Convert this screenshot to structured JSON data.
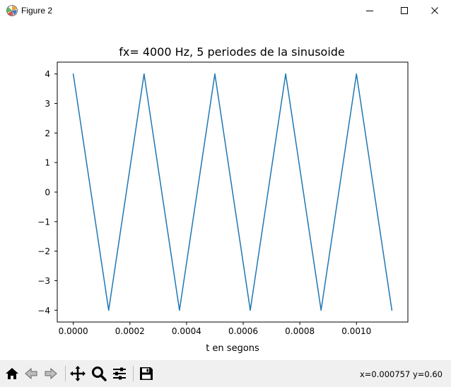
{
  "window": {
    "title": "Figure 2",
    "app_icon": "matplotlib-icon",
    "controls": [
      "minimize-icon",
      "maximize-icon",
      "close-icon"
    ]
  },
  "chart_data": {
    "type": "line",
    "title": "fx= 4000 Hz, 5 periodes de la sinusoide",
    "xlabel": "t en segons",
    "ylabel": "",
    "xlim": [
      -5.65e-05,
      0.0011815
    ],
    "ylim": [
      -4.4,
      4.4
    ],
    "x_ticks": [
      0.0,
      0.0002,
      0.0004,
      0.0006,
      0.0008,
      0.001
    ],
    "x_tick_labels": [
      "0.0000",
      "0.0002",
      "0.0004",
      "0.0006",
      "0.0008",
      "0.0010"
    ],
    "y_ticks": [
      4,
      3,
      2,
      1,
      0,
      -1,
      -2,
      -3,
      -4
    ],
    "y_tick_labels": [
      "4",
      "3",
      "2",
      "1",
      "0",
      "−1",
      "−2",
      "−3",
      "−4"
    ],
    "grid": false,
    "series": [
      {
        "color": "#1f77b4",
        "x": [
          0.0,
          0.000125,
          0.00025,
          0.000375,
          0.0005,
          0.000625,
          0.00075,
          0.000875,
          0.001,
          0.001125
        ],
        "y": [
          4,
          -4,
          4,
          -4,
          4,
          -4,
          4,
          -4,
          4,
          -4
        ]
      }
    ]
  },
  "toolbar": {
    "tools": [
      "home-icon",
      "back-icon",
      "forward-icon",
      "pan-icon",
      "zoom-icon",
      "configure-subplots-icon",
      "save-icon"
    ],
    "coordinates": "x=0.000757 y=0.60"
  }
}
